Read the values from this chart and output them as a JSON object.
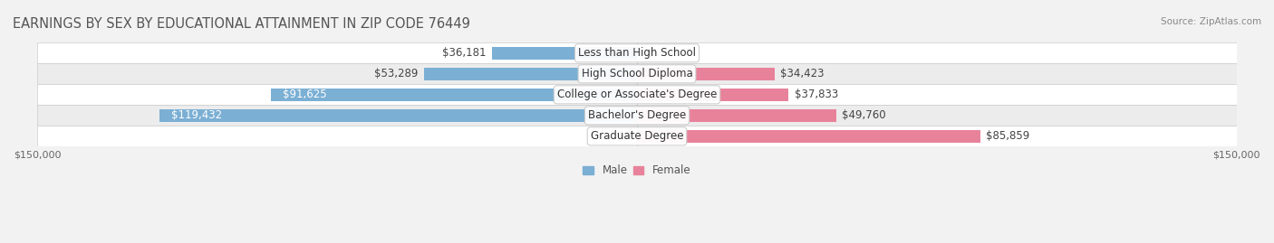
{
  "title": "EARNINGS BY SEX BY EDUCATIONAL ATTAINMENT IN ZIP CODE 76449",
  "source": "Source: ZipAtlas.com",
  "categories": [
    "Less than High School",
    "High School Diploma",
    "College or Associate's Degree",
    "Bachelor's Degree",
    "Graduate Degree"
  ],
  "male_values": [
    36181,
    53289,
    91625,
    119432,
    0
  ],
  "female_values": [
    0,
    34423,
    37833,
    49760,
    85859
  ],
  "male_color": "#7bafd4",
  "female_color": "#e8829a",
  "male_color_light": "#a8c8e8",
  "female_color_light": "#f0a8b8",
  "xlim": 150000,
  "bar_height": 0.62,
  "background_color": "#f0f0f0",
  "row_bg_light": "#f8f8f8",
  "row_bg_dark": "#eeeeee",
  "title_fontsize": 10.5,
  "label_fontsize": 8.5,
  "tick_fontsize": 8,
  "legend_fontsize": 8.5
}
